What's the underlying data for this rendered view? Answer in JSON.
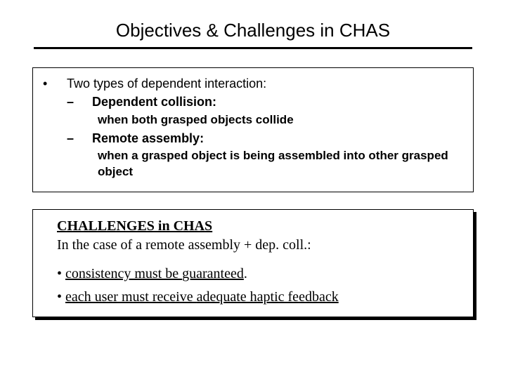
{
  "title": "Objectives & Challenges in CHAS",
  "box1": {
    "bullet": "•",
    "intro": "Two types of dependent interaction:",
    "items": [
      {
        "dash": "–",
        "label": "Dependent collision:",
        "desc": "when both grasped objects collide"
      },
      {
        "dash": "–",
        "label": "Remote assembly:",
        "desc": "when a grasped object is being assembled into other grasped object"
      }
    ]
  },
  "box2": {
    "title": "CHALLENGES in CHAS",
    "subtitle": "In the case of a remote assembly + dep. coll.:",
    "points": [
      {
        "bullet": "•",
        "pre": "consistency must be ",
        "u": "guaranteed",
        "post": "."
      },
      {
        "bullet": "•",
        "pre": "each user must receive ",
        "u": "adequate haptic feedback",
        "post": ""
      }
    ]
  },
  "colors": {
    "bg": "#ffffff",
    "text": "#000000",
    "rule": "#000000"
  }
}
